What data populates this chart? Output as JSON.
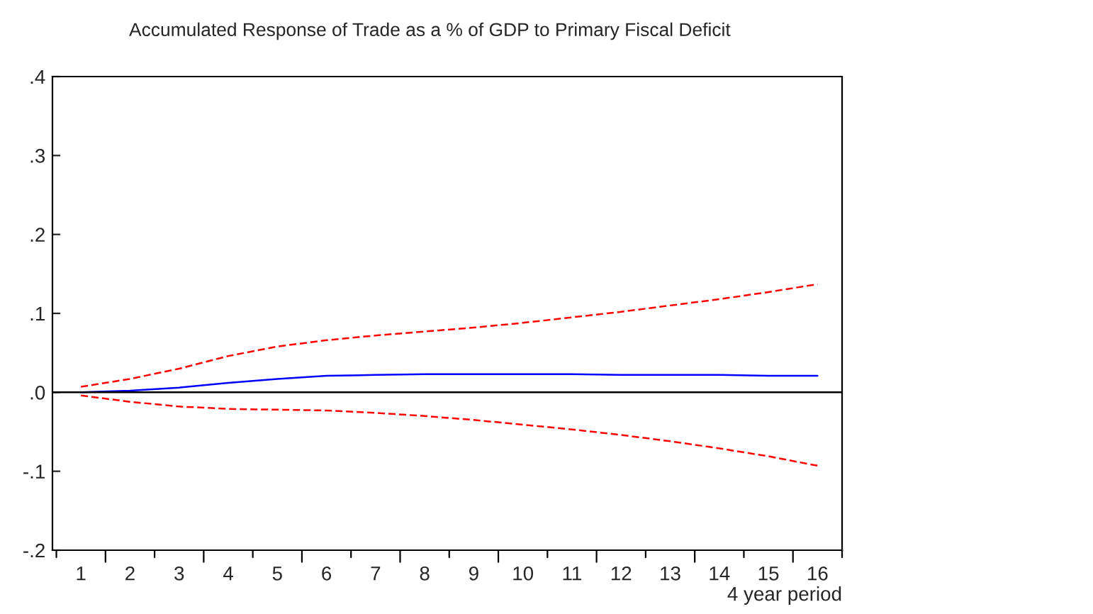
{
  "chart_data": {
    "type": "line",
    "title": "Accumulated Response of Trade as a % of GDP to Primary Fiscal Deficit",
    "xlabel": "4 year period",
    "categories": [
      "1",
      "2",
      "3",
      "4",
      "5",
      "6",
      "7",
      "8",
      "9",
      "10",
      "11",
      "12",
      "13",
      "14",
      "15",
      "16"
    ],
    "series": [
      {
        "color": "#0000ff",
        "line_style": "solid",
        "values": [
          0.0,
          0.002,
          0.006,
          0.012,
          0.017,
          0.021,
          0.022,
          0.023,
          0.023,
          0.023,
          0.023,
          0.022,
          0.022,
          0.022,
          0.021,
          0.021
        ]
      },
      {
        "color": "#ff0000",
        "line_style": "dashed",
        "values": [
          0.007,
          0.017,
          0.03,
          0.046,
          0.058,
          0.066,
          0.072,
          0.077,
          0.082,
          0.088,
          0.095,
          0.102,
          0.11,
          0.118,
          0.127,
          0.137
        ]
      },
      {
        "color": "#ff0000",
        "line_style": "dashed",
        "values": [
          -0.004,
          -0.012,
          -0.018,
          -0.021,
          -0.022,
          -0.023,
          -0.026,
          -0.03,
          -0.035,
          -0.041,
          -0.047,
          -0.054,
          -0.062,
          -0.071,
          -0.081,
          -0.093
        ]
      }
    ],
    "ylim": [
      -0.2,
      0.4
    ],
    "yticks": [
      {
        "value": -0.2,
        "label": "-.2"
      },
      {
        "value": -0.1,
        "label": "-.1"
      },
      {
        "value": 0.0,
        "label": ".0"
      },
      {
        "value": 0.1,
        "label": ".1"
      },
      {
        "value": 0.2,
        "label": ".2"
      },
      {
        "value": 0.3,
        "label": ".3"
      },
      {
        "value": 0.4,
        "label": ".4"
      }
    ],
    "ref_lines": [
      {
        "axis": "y",
        "value": 0,
        "color": "#000000",
        "line_style": "solid"
      }
    ],
    "grid": false,
    "legend": false
  }
}
